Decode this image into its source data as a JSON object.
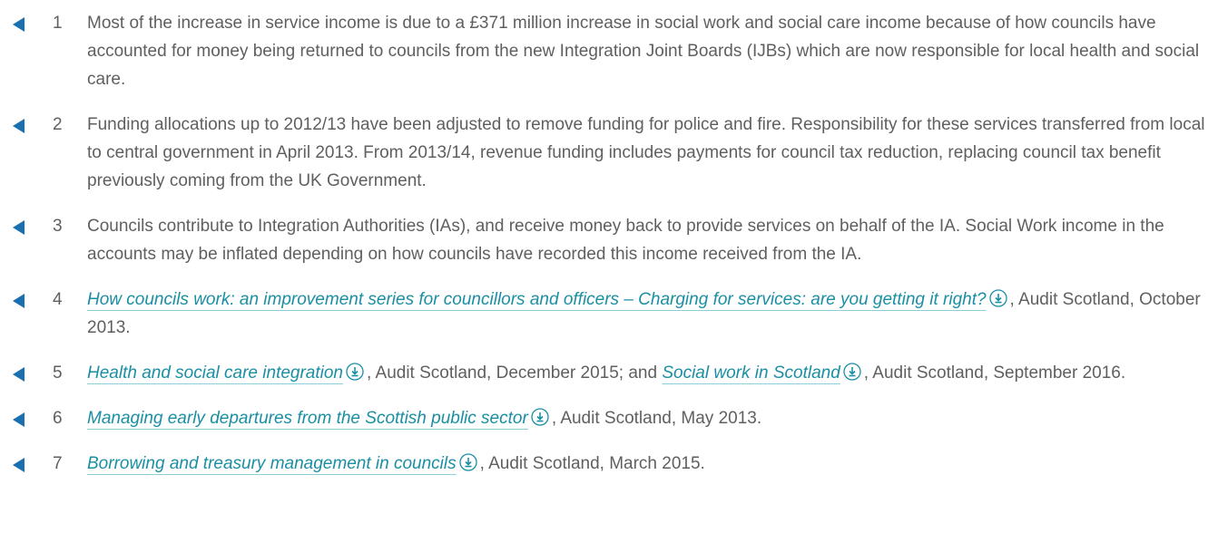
{
  "notes": [
    {
      "number": "1",
      "parts": [
        {
          "text": "Most of the increase in service income is due to a £371 million increase in social work and social care income because of how councils have accounted for money being returned to councils from the new Integration Joint Boards (IJBs) which are now responsible for local health and social care."
        }
      ]
    },
    {
      "number": "2",
      "parts": [
        {
          "text": "Funding allocations up to 2012/13 have been adjusted to remove funding for police and fire. Responsibility for these services transferred from local to central government in April 2013. From 2013/14, revenue funding includes payments for council tax reduction, replacing council tax benefit previously coming from the UK Government."
        }
      ]
    },
    {
      "number": "3",
      "parts": [
        {
          "text": "Councils contribute to Integration Authorities (IAs), and receive money back to provide services on behalf of the IA. Social Work income in the accounts may be inflated depending on how councils have recorded this income received from the IA."
        }
      ]
    },
    {
      "number": "4",
      "parts": [
        {
          "link": "How councils work: an improvement series for councillors and officers – Charging for services: are you getting it right?"
        },
        {
          "text": ", Audit Scotland, October 2013."
        }
      ]
    },
    {
      "number": "5",
      "parts": [
        {
          "link": "Health and social care integration"
        },
        {
          "text": ", Audit Scotland, December 2015; and "
        },
        {
          "link": "Social work in Scotland"
        },
        {
          "text": ", Audit Scotland, September 2016."
        }
      ]
    },
    {
      "number": "6",
      "parts": [
        {
          "link": "Managing early departures from the Scottish public sector"
        },
        {
          "text": ", Audit Scotland, May 2013."
        }
      ]
    },
    {
      "number": "7",
      "parts": [
        {
          "link": "Borrowing and treasury management in councils"
        },
        {
          "text": ", Audit Scotland, March 2015."
        }
      ]
    }
  ]
}
